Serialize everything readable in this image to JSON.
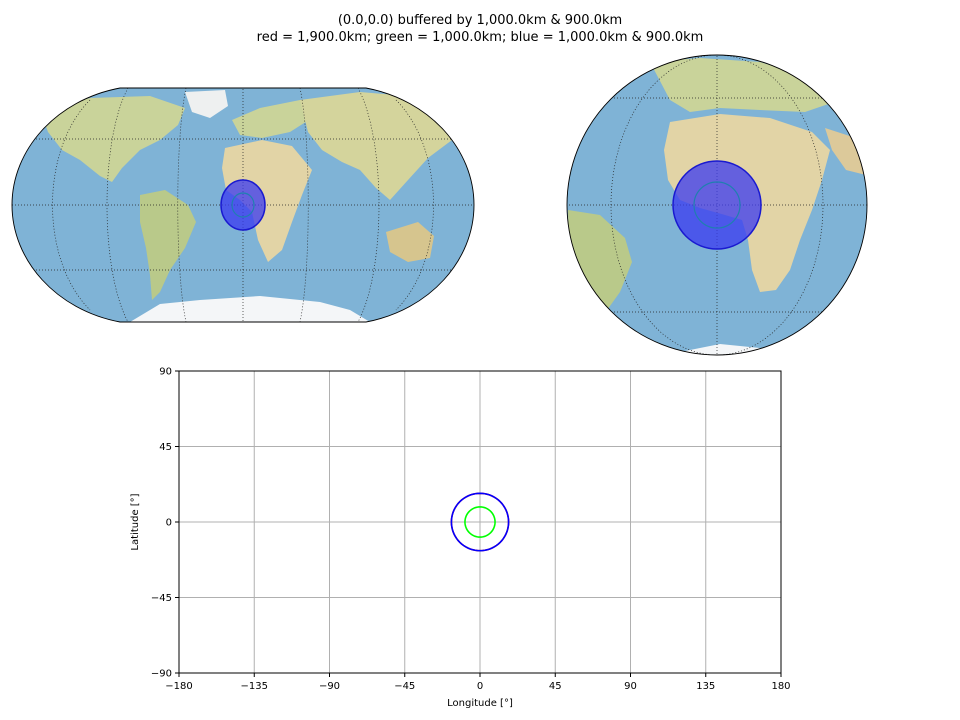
{
  "title_line1": "(0.0,0.0) buffered by 1,000.0km & 900.0km",
  "title_line2": "red = 1,900.0km; green = 1,000.0km; blue = 1,000.0km & 900.0km",
  "colors": {
    "ocean": "#7fb3d6",
    "land": "#d7d8a5",
    "desert": "#e7dcb8",
    "ice": "#f4f6f8",
    "buffer_fill": "#3a3af0",
    "buffer_edge": "#1a1ad0",
    "green": "#00ff00",
    "grid": "#b0b0b0",
    "graticule": "#222222"
  },
  "maps": [
    {
      "projection": "robinson",
      "center": [
        0,
        0
      ]
    },
    {
      "projection": "orthographic",
      "center": [
        0,
        0
      ]
    }
  ],
  "chart_data": {
    "type": "line",
    "xlabel": "Longitude [°]",
    "ylabel": "Latitude [°]",
    "xlim": [
      -180,
      180
    ],
    "ylim": [
      -90,
      90
    ],
    "xticks": [
      -180,
      -135,
      -90,
      -45,
      0,
      45,
      90,
      135,
      180
    ],
    "yticks": [
      -90,
      -45,
      0,
      45,
      90
    ],
    "grid": true,
    "series": [
      {
        "color": "#ff0000",
        "center": [
          0,
          0
        ],
        "radius_deg": 17.1
      },
      {
        "color": "#00ff00",
        "center": [
          0,
          0
        ],
        "radius_deg": 9.0
      },
      {
        "color": "#0000ff",
        "center": [
          0,
          0
        ],
        "radius_deg": 17.1
      }
    ]
  }
}
